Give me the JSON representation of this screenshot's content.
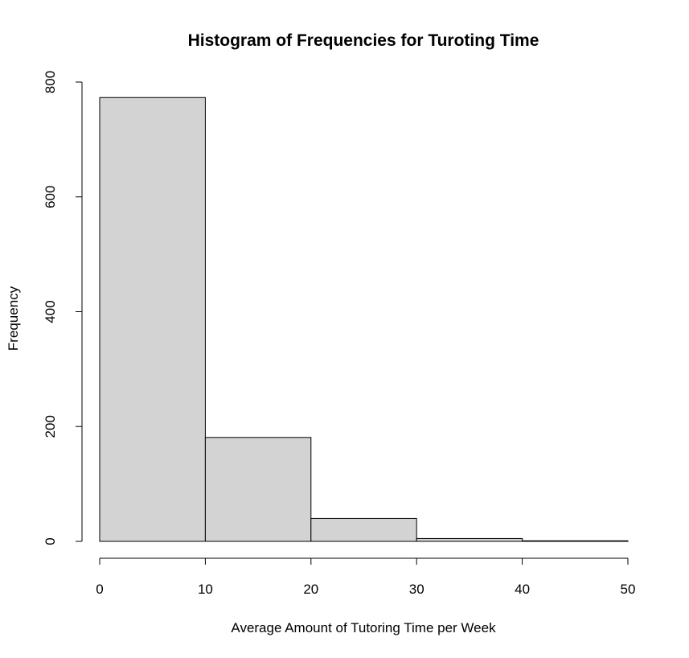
{
  "chart_data": {
    "type": "bar",
    "title": "Histogram of Frequencies for Turoting Time",
    "xlabel": "Average Amount of Tutoring Time per Week",
    "ylabel": "Frequency",
    "bins": [
      {
        "from": 0,
        "to": 10,
        "count": 773
      },
      {
        "from": 10,
        "to": 20,
        "count": 181
      },
      {
        "from": 20,
        "to": 30,
        "count": 40
      },
      {
        "from": 30,
        "to": 40,
        "count": 5
      },
      {
        "from": 40,
        "to": 50,
        "count": 1
      }
    ],
    "xlim": [
      0,
      50
    ],
    "ylim": [
      0,
      800
    ],
    "x_ticks": [
      "0",
      "10",
      "20",
      "30",
      "40",
      "50"
    ],
    "y_ticks": [
      "0",
      "200",
      "400",
      "600",
      "800"
    ],
    "grid": false,
    "bar_color": "#d3d3d3",
    "edge_color": "#000000"
  }
}
